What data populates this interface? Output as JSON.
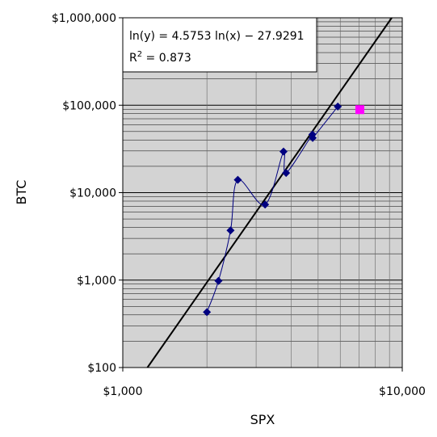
{
  "chart_data": {
    "type": "scatter",
    "xlabel": "SPX",
    "ylabel": "BTC",
    "x_scale": "log",
    "y_scale": "log",
    "xlim": [
      1000,
      10000
    ],
    "ylim": [
      100,
      1000000
    ],
    "x_ticks": [
      {
        "value": 1000,
        "label": "$1,000"
      },
      {
        "value": 10000,
        "label": "$10,000"
      }
    ],
    "y_ticks": [
      {
        "value": 100,
        "label": "$100"
      },
      {
        "value": 1000,
        "label": "$1,000"
      },
      {
        "value": 10000,
        "label": "$10,000"
      },
      {
        "value": 100000,
        "label": "$100,000"
      },
      {
        "value": 1000000,
        "label": "$1,000,000"
      }
    ],
    "grid": true,
    "background": "#d3d3d3",
    "series": [
      {
        "marker": "diamond",
        "color": "#000080",
        "smoothed_line": true,
        "points": [
          [
            2000,
            430
          ],
          [
            2200,
            980
          ],
          [
            2430,
            3700
          ],
          [
            2580,
            14000
          ],
          [
            3230,
            7300
          ],
          [
            3760,
            29500
          ],
          [
            3840,
            16800
          ],
          [
            4770,
            46300
          ],
          [
            4780,
            42300
          ],
          [
            5880,
            96500
          ]
        ]
      },
      {
        "marker": "square",
        "color": "#ff00ff",
        "points": [
          [
            7050,
            89000
          ]
        ]
      }
    ],
    "trendline": {
      "type": "power",
      "slope": 4.5753,
      "intercept": -27.9291,
      "color": "#000000"
    },
    "annotation": {
      "equation": "ln(y) = 4.5753 ln(x) − 27.9291",
      "r_squared_prefix": "R",
      "r_squared_sup": "2",
      "r_squared_value": " = 0.873"
    }
  }
}
